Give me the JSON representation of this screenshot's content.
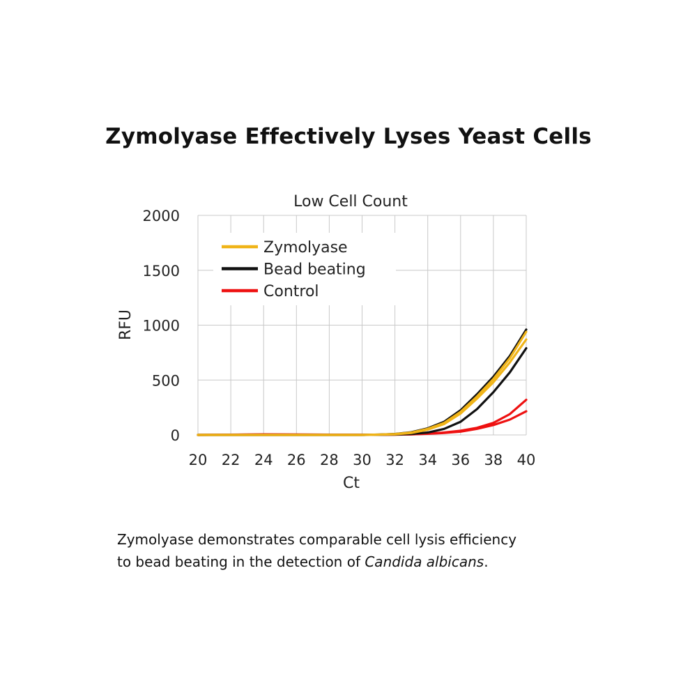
{
  "headline": "Zymolyase Effectively Lyses Yeast Cells",
  "caption": {
    "line1": "Zymolyase demonstrates comparable cell lysis efficiency",
    "line2_prefix": "to bead beating in the detection of ",
    "line2_species": "Candida albicans",
    "line2_suffix": "."
  },
  "colors": {
    "zymolyase": "#F0B418",
    "bead_beating": "#111111",
    "control": "#EE1111",
    "grid": "#c8c8c8"
  },
  "chart_data": {
    "type": "line",
    "title": "Low Cell Count",
    "xlabel": "Ct",
    "ylabel": "RFU",
    "xlim": [
      20,
      40
    ],
    "ylim": [
      0,
      2000
    ],
    "xticks": [
      20,
      22,
      24,
      26,
      28,
      30,
      32,
      34,
      36,
      38,
      40
    ],
    "yticks": [
      0,
      500,
      1000,
      1500,
      2000
    ],
    "grid": true,
    "legend_position": "top-left",
    "legend": [
      "Zymolyase",
      "Bead beating",
      "Control"
    ],
    "series": [
      {
        "name": "Zymolyase",
        "group": "zymolyase",
        "x": [
          20,
          30,
          31,
          32,
          33,
          34,
          35,
          36,
          37,
          38,
          39,
          40
        ],
        "y": [
          0,
          0,
          3,
          8,
          22,
          55,
          110,
          210,
          350,
          510,
          700,
          940
        ]
      },
      {
        "name": "Zymolyase",
        "group": "zymolyase",
        "x": [
          20,
          30,
          31,
          32,
          33,
          34,
          35,
          36,
          37,
          38,
          39,
          40
        ],
        "y": [
          0,
          0,
          2,
          6,
          18,
          48,
          100,
          195,
          330,
          480,
          660,
          870
        ]
      },
      {
        "name": "Bead beating",
        "group": "bead_beating",
        "x": [
          20,
          30,
          31,
          32,
          33,
          34,
          35,
          36,
          37,
          38,
          39,
          40
        ],
        "y": [
          0,
          0,
          3,
          9,
          25,
          60,
          120,
          225,
          370,
          530,
          720,
          960
        ]
      },
      {
        "name": "Bead beating",
        "group": "bead_beating",
        "x": [
          20,
          30,
          31,
          32,
          33,
          34,
          35,
          36,
          37,
          38,
          39,
          40
        ],
        "y": [
          0,
          0,
          1,
          3,
          8,
          22,
          55,
          120,
          235,
          390,
          570,
          790
        ]
      },
      {
        "name": "Control",
        "group": "control",
        "x": [
          20,
          24,
          30,
          32,
          33,
          34,
          35,
          36,
          37,
          38,
          39,
          40
        ],
        "y": [
          0,
          5,
          2,
          3,
          6,
          12,
          22,
          38,
          65,
          110,
          190,
          320
        ]
      },
      {
        "name": "Control",
        "group": "control",
        "x": [
          20,
          24,
          30,
          32,
          33,
          34,
          35,
          36,
          37,
          38,
          39,
          40
        ],
        "y": [
          0,
          4,
          1,
          2,
          5,
          10,
          18,
          30,
          55,
          90,
          140,
          215
        ]
      }
    ]
  }
}
